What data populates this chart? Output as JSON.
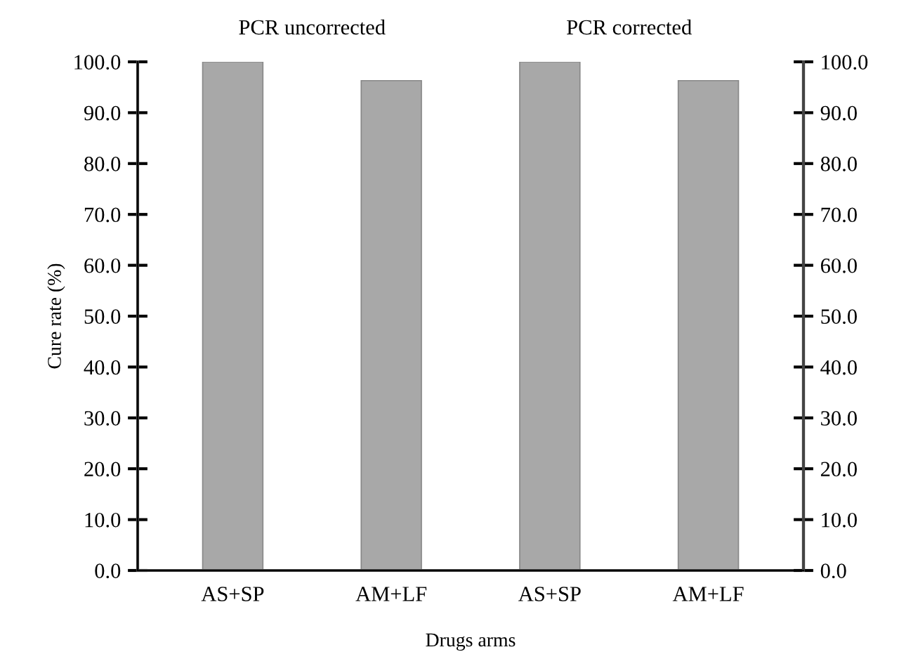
{
  "chart_data": {
    "type": "bar",
    "categories": [
      "AS+SP",
      "AM+LF",
      "AS+SP",
      "AM+LF"
    ],
    "values": [
      100.0,
      96.3,
      100.0,
      96.3
    ],
    "color": "#a8a8a8",
    "xlabel": "Drugs arms",
    "ylabel": "Cure rate (%)",
    "annotations": [
      "PCR uncorrected",
      "PCR corrected"
    ],
    "ylim": [
      0,
      100
    ],
    "y2lim": [
      0,
      100
    ],
    "yticks": [
      {
        "value": 0,
        "label": "0.0"
      },
      {
        "value": 10,
        "label": "10.0"
      },
      {
        "value": 20,
        "label": "20.0"
      },
      {
        "value": 30,
        "label": "30.0"
      },
      {
        "value": 40,
        "label": "40.0"
      },
      {
        "value": 50,
        "label": "50.0"
      },
      {
        "value": 60,
        "label": "60.0"
      },
      {
        "value": 70,
        "label": "70.0"
      },
      {
        "value": 80,
        "label": "80.0"
      },
      {
        "value": 90,
        "label": "90.0"
      },
      {
        "value": 100,
        "label": "100.0"
      }
    ],
    "y2ticks": [
      {
        "value": 0,
        "label": "0.0"
      },
      {
        "value": 10,
        "label": "10.0"
      },
      {
        "value": 20,
        "label": "20.0"
      },
      {
        "value": 30,
        "label": "30.0"
      },
      {
        "value": 40,
        "label": "40.0"
      },
      {
        "value": 50,
        "label": "50.0"
      },
      {
        "value": 60,
        "label": "60.0"
      },
      {
        "value": 70,
        "label": "70.0"
      },
      {
        "value": 80,
        "label": "80.0"
      },
      {
        "value": 90,
        "label": "90.0"
      },
      {
        "value": 100,
        "label": "100.0"
      }
    ],
    "grid": false,
    "legend": false
  }
}
